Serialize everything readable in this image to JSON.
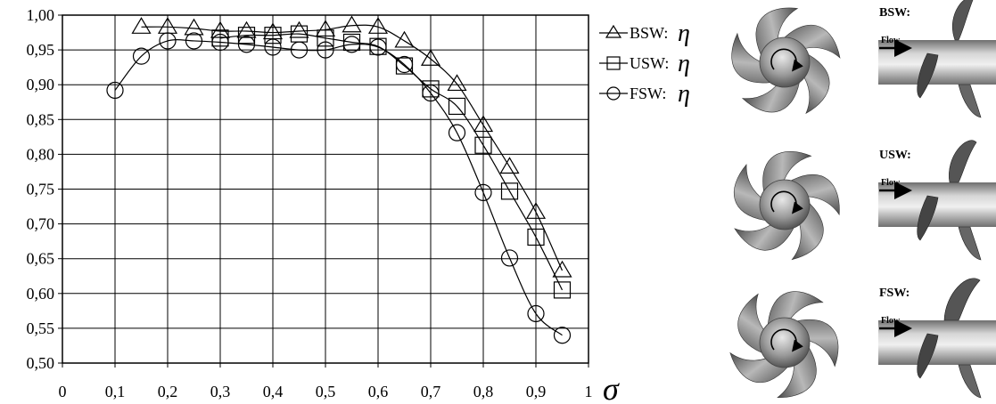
{
  "chart_data": {
    "type": "line",
    "xlabel": "σ",
    "ylabel": "",
    "xlim": [
      0,
      1
    ],
    "ylim": [
      0.5,
      1.0
    ],
    "x_ticks": [
      "0",
      "0,1",
      "0,2",
      "0,3",
      "0,4",
      "0,5",
      "0,6",
      "0,7",
      "0,8",
      "0,9",
      "1"
    ],
    "y_ticks": [
      "0,50",
      "0,55",
      "0,60",
      "0,65",
      "0,70",
      "0,75",
      "0,80",
      "0,85",
      "0,90",
      "0,95",
      "1,00"
    ],
    "grid": true,
    "legend_position": "right",
    "series": [
      {
        "name": "BSW:",
        "marker": "triangle",
        "x": [
          0.15,
          0.2,
          0.25,
          0.3,
          0.35,
          0.4,
          0.45,
          0.5,
          0.55,
          0.6,
          0.65,
          0.7,
          0.75,
          0.8,
          0.85,
          0.9,
          0.95
        ],
        "y": [
          0.983,
          0.983,
          0.981,
          0.977,
          0.977,
          0.975,
          0.977,
          0.979,
          0.985,
          0.983,
          0.963,
          0.937,
          0.901,
          0.842,
          0.782,
          0.717,
          0.633
        ]
      },
      {
        "name": "USW:",
        "marker": "square",
        "x": [
          0.3,
          0.35,
          0.4,
          0.45,
          0.5,
          0.55,
          0.6,
          0.65,
          0.7,
          0.75,
          0.8,
          0.85,
          0.9,
          0.95
        ],
        "y": [
          0.967,
          0.971,
          0.971,
          0.973,
          0.967,
          0.961,
          0.955,
          0.927,
          0.894,
          0.869,
          0.813,
          0.747,
          0.681,
          0.605
        ]
      },
      {
        "name": "FSW:",
        "marker": "circle",
        "x": [
          0.1,
          0.15,
          0.2,
          0.25,
          0.3,
          0.35,
          0.4,
          0.45,
          0.5,
          0.55,
          0.6,
          0.65,
          0.7,
          0.75,
          0.8,
          0.85,
          0.9,
          0.95
        ],
        "y": [
          0.892,
          0.941,
          0.963,
          0.963,
          0.961,
          0.958,
          0.954,
          0.95,
          0.95,
          0.958,
          0.954,
          0.929,
          0.888,
          0.831,
          0.745,
          0.651,
          0.571,
          0.54
        ]
      }
    ],
    "legend_symbol": "η"
  },
  "panels": [
    {
      "label": "BSW:",
      "flow": "Flow"
    },
    {
      "label": "USW:",
      "flow": "Flow"
    },
    {
      "label": "FSW:",
      "flow": "Flow"
    }
  ]
}
